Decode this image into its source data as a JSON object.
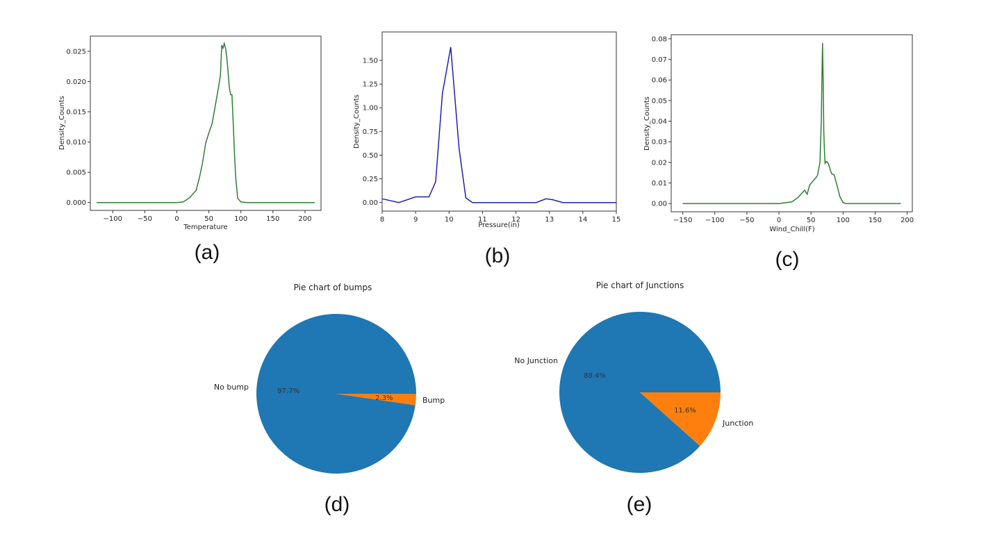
{
  "colors": {
    "kde_green": "#2e7d32",
    "kde_blue": "#1f1fb4",
    "pie_blue": "#1f77b4",
    "pie_orange": "#ff7f0e"
  },
  "chart_data": [
    {
      "panel": "a",
      "type": "line",
      "caption": "(a)",
      "xlabel": "Temperature",
      "ylabel": "Density_Counts",
      "xlim": [
        -135,
        225
      ],
      "ylim": [
        -0.0013,
        0.0275
      ],
      "xticks": [
        -100,
        -50,
        0,
        50,
        100,
        150,
        200
      ],
      "xtick_labels": [
        "−100",
        "−50",
        "0",
        "50",
        "100",
        "150",
        "200"
      ],
      "yticks": [
        0,
        0.005,
        0.01,
        0.015,
        0.02,
        0.025
      ],
      "ytick_labels": [
        "0.000",
        "0.005",
        "0.010",
        "0.015",
        "0.020",
        "0.025"
      ],
      "color": "#2e7d32",
      "x": [
        -125,
        0,
        10,
        20,
        30,
        35,
        40,
        45,
        50,
        55,
        60,
        65,
        68,
        70,
        72,
        74,
        76,
        78,
        80,
        82,
        84,
        86,
        88,
        90,
        92,
        95,
        100,
        110,
        150,
        215
      ],
      "y": [
        0,
        0,
        0.0001,
        0.0008,
        0.002,
        0.004,
        0.0065,
        0.0098,
        0.0115,
        0.013,
        0.016,
        0.019,
        0.021,
        0.026,
        0.0255,
        0.0263,
        0.0255,
        0.024,
        0.0215,
        0.019,
        0.0178,
        0.0178,
        0.013,
        0.008,
        0.004,
        0.0007,
        0.0001,
        0,
        0,
        0
      ]
    },
    {
      "panel": "b",
      "type": "line",
      "caption": "(b)",
      "xlabel": "Pressure(in)",
      "ylabel": "Density_Counts",
      "xlim": [
        8,
        15
      ],
      "ylim": [
        -0.09,
        1.8
      ],
      "xticks": [
        8,
        9,
        10,
        11,
        12,
        13,
        14,
        15
      ],
      "xtick_labels": [
        "8",
        "9",
        "10",
        "11",
        "12",
        "13",
        "14",
        "15"
      ],
      "yticks": [
        0,
        0.25,
        0.5,
        0.75,
        1.0,
        1.25,
        1.5
      ],
      "ytick_labels": [
        "0.00",
        "0.25",
        "0.50",
        "0.75",
        "1.00",
        "1.25",
        "1.50"
      ],
      "color": "#1f1fb4",
      "x": [
        8,
        8.5,
        9,
        9.4,
        9.6,
        9.8,
        10.05,
        10.3,
        10.5,
        10.7,
        11,
        12,
        12.6,
        12.9,
        13.1,
        13.4,
        14,
        15
      ],
      "y": [
        0.04,
        0.0,
        0.06,
        0.06,
        0.22,
        1.15,
        1.64,
        0.57,
        0.05,
        0.0,
        0.0,
        0.0,
        0.0,
        0.04,
        0.03,
        0.0,
        0.0,
        0.0
      ]
    },
    {
      "panel": "c",
      "type": "line",
      "caption": "(c)",
      "xlabel": "Wind_Chill(F)",
      "ylabel": "Density_Counts",
      "xlim": [
        -168,
        208
      ],
      "ylim": [
        -0.004,
        0.082
      ],
      "xticks": [
        -150,
        -100,
        -50,
        0,
        50,
        100,
        150,
        200
      ],
      "xtick_labels": [
        "−150",
        "−100",
        "−50",
        "0",
        "50",
        "100",
        "150",
        "200"
      ],
      "yticks": [
        0,
        0.01,
        0.02,
        0.03,
        0.04,
        0.05,
        0.06,
        0.07,
        0.08
      ],
      "ytick_labels": [
        "0.00",
        "0.01",
        "0.02",
        "0.03",
        "0.04",
        "0.05",
        "0.06",
        "0.07",
        "0.08"
      ],
      "color": "#2e7d32",
      "x": [
        -150,
        0,
        20,
        30,
        40,
        44,
        48,
        52,
        56,
        60,
        64,
        66,
        67,
        68,
        69,
        70,
        71,
        72,
        74,
        76,
        78,
        82,
        86,
        90,
        95,
        100,
        105,
        120,
        190
      ],
      "y": [
        0,
        0,
        0.0008,
        0.003,
        0.0065,
        0.0045,
        0.009,
        0.0105,
        0.012,
        0.0135,
        0.02,
        0.04,
        0.06,
        0.078,
        0.06,
        0.035,
        0.025,
        0.0195,
        0.0205,
        0.02,
        0.0185,
        0.0145,
        0.014,
        0.0095,
        0.0035,
        0.0005,
        0,
        0,
        0
      ]
    },
    {
      "panel": "d",
      "type": "pie",
      "caption": "(d)",
      "title": "Pie chart of bumps",
      "labels": [
        "No bump",
        "Bump"
      ],
      "values": [
        97.7,
        2.3
      ],
      "pct_labels": [
        "97.7%",
        "2.3%"
      ],
      "colors": [
        "#1f77b4",
        "#ff7f0e"
      ]
    },
    {
      "panel": "e",
      "type": "pie",
      "caption": "(e)",
      "title": "Pie chart of Junctions",
      "labels": [
        "No Junction",
        "Junction"
      ],
      "values": [
        88.4,
        11.6
      ],
      "pct_labels": [
        "88.4%",
        "11.6%"
      ],
      "colors": [
        "#1f77b4",
        "#ff7f0e"
      ]
    }
  ]
}
